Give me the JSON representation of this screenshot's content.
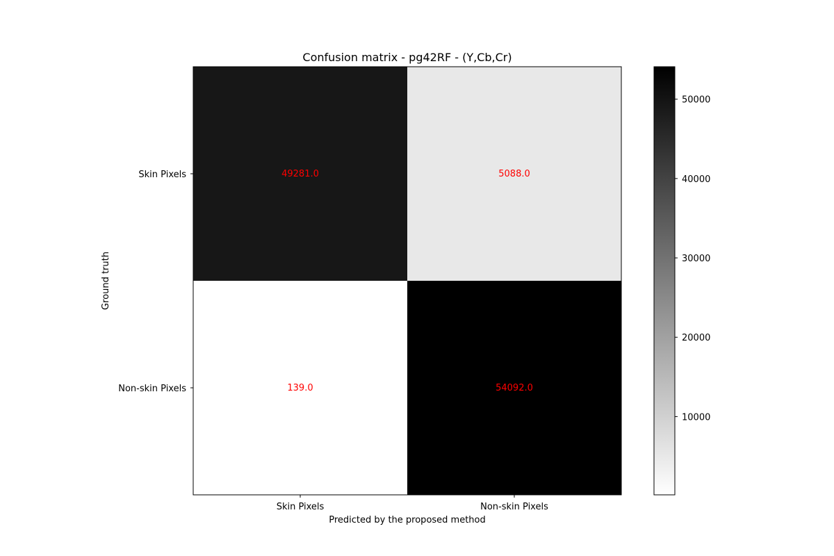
{
  "chart_data": {
    "type": "heatmap",
    "title": "Confusion matrix - pg42RF - (Y,Cb,Cr)",
    "xlabel": "Predicted by the proposed method",
    "ylabel": "Ground truth",
    "x_categories": [
      "Skin Pixels",
      "Non-skin Pixels"
    ],
    "y_categories": [
      "Skin Pixels",
      "Non-skin Pixels"
    ],
    "values": [
      [
        49281.0,
        5088.0
      ],
      [
        139.0,
        54092.0
      ]
    ],
    "cell_labels": [
      [
        "49281.0",
        "5088.0"
      ],
      [
        "139.0",
        "54092.0"
      ]
    ],
    "colormap": "gray_r",
    "annotation_color": "#ff0000",
    "colorbar": {
      "range": [
        139.0,
        54092.0
      ],
      "ticks": [
        10000,
        20000,
        30000,
        40000,
        50000
      ],
      "tick_labels": [
        "10000",
        "20000",
        "30000",
        "40000",
        "50000"
      ]
    },
    "grid": false
  }
}
